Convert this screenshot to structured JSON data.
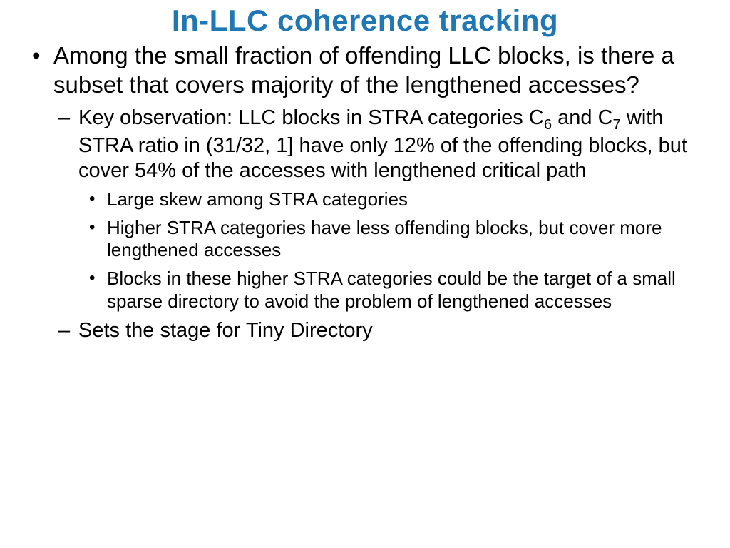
{
  "title": "In-LLC coherence tracking",
  "bullet1": "Among the small fraction of offending LLC blocks, is there a subset that covers majority of the lengthened accesses?",
  "sub1_pre": "Key observation: LLC blocks in STRA categories C",
  "sub1_s6": "6",
  "sub1_mid": " and C",
  "sub1_s7": "7",
  "sub1_post": " with STRA ratio in (31/32, 1] have only 12% of the offending blocks, but cover 54% of the accesses with lengthened critical path",
  "sub1a": "Large skew among STRA categories",
  "sub1b": "Higher STRA categories have less offending blocks, but cover more lengthened accesses",
  "sub1c": "Blocks in these higher STRA categories could be the target of a small sparse directory to avoid the problem of lengthened accesses",
  "sub2": "Sets the stage for Tiny Directory",
  "colors": {
    "title": "#1f77b4",
    "text": "#000000",
    "background": "#ffffff"
  },
  "fontsizes": {
    "title": 42,
    "level1": 33,
    "level2": 29,
    "level3": 26
  }
}
